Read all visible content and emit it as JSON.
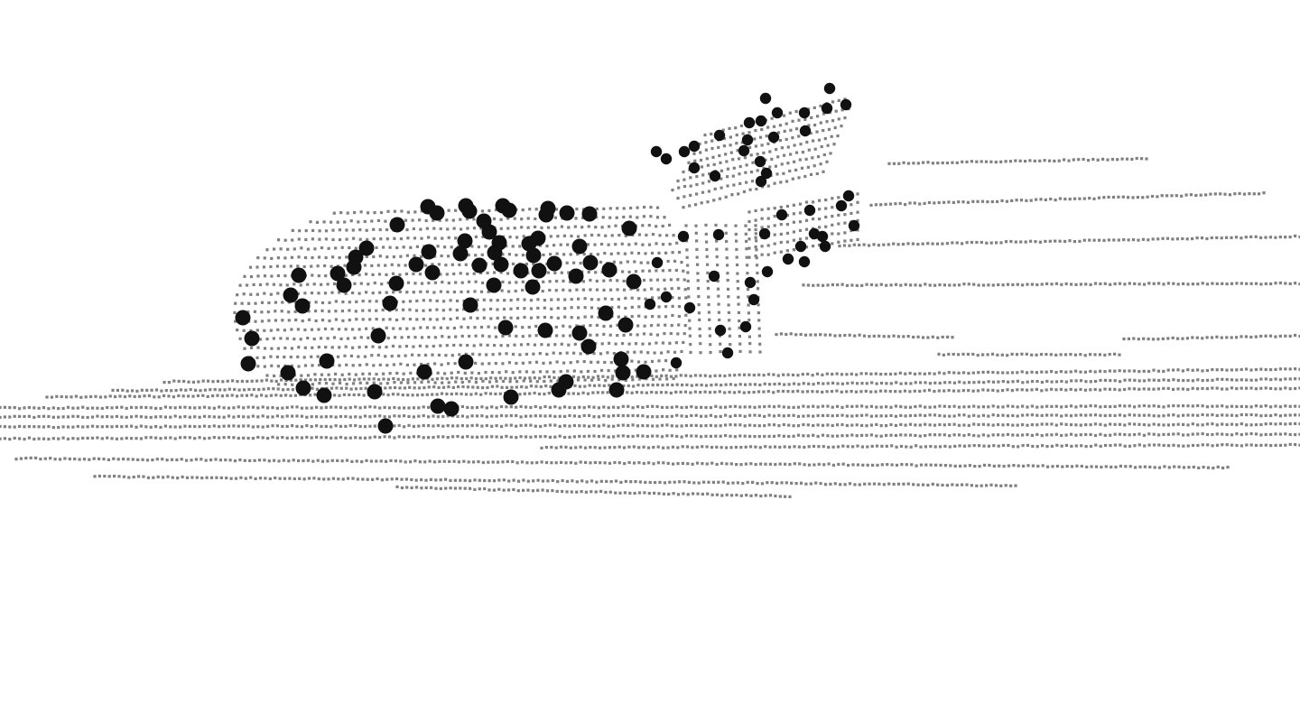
{
  "view": {
    "background_color": "#ffffff",
    "scan_point_color": "#808080",
    "keypoint_color": "#111111"
  }
}
